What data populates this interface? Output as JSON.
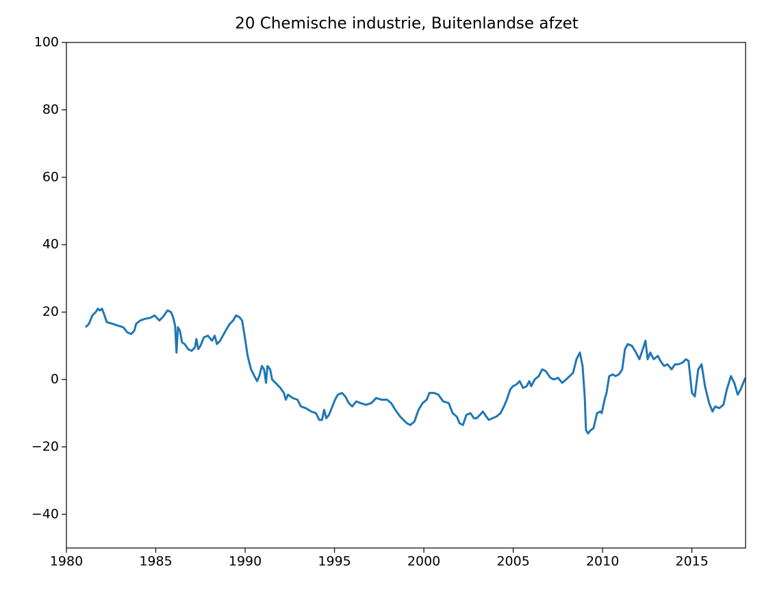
{
  "chart_data": {
    "type": "line",
    "title": "20 Chemische industrie, Buitenlandse afzet",
    "color": "#1f77b4",
    "x": [
      1981.07,
      1981.26,
      1981.45,
      1981.64,
      1981.76,
      1981.87,
      1981.99,
      1982.1,
      1982.26,
      1982.6,
      1982.87,
      1983.18,
      1983.4,
      1983.63,
      1983.8,
      1983.9,
      1984.13,
      1984.4,
      1984.7,
      1984.93,
      1985.2,
      1985.39,
      1985.66,
      1985.85,
      1985.97,
      1986.08,
      1986.16,
      1986.24,
      1986.35,
      1986.47,
      1986.62,
      1986.81,
      1987.0,
      1987.19,
      1987.27,
      1987.38,
      1987.5,
      1987.69,
      1987.92,
      1988.15,
      1988.3,
      1988.42,
      1988.6,
      1988.91,
      1989.14,
      1989.33,
      1989.49,
      1989.68,
      1989.83,
      1990.0,
      1990.14,
      1990.33,
      1990.52,
      1990.67,
      1990.79,
      1990.94,
      1991.06,
      1991.17,
      1991.25,
      1991.4,
      1991.51,
      1991.7,
      1991.97,
      1992.17,
      1992.28,
      1992.4,
      1992.66,
      1992.93,
      1993.12,
      1993.39,
      1993.7,
      1993.96,
      1994.15,
      1994.3,
      1994.42,
      1994.54,
      1994.69,
      1994.88,
      1995.03,
      1995.19,
      1995.42,
      1995.6,
      1995.8,
      1995.99,
      1996.22,
      1996.45,
      1996.76,
      1997.06,
      1997.33,
      1997.64,
      1997.94,
      1998.17,
      1998.4,
      1998.67,
      1998.86,
      1999.05,
      1999.24,
      1999.47,
      1999.7,
      1999.93,
      2000.16,
      2000.31,
      2000.58,
      2000.81,
      2001.08,
      2001.39,
      2001.61,
      2001.84,
      2002.0,
      2002.19,
      2002.38,
      2002.61,
      2002.8,
      2002.95,
      2003.14,
      2003.3,
      2003.49,
      2003.64,
      2003.83,
      2004.06,
      2004.29,
      2004.48,
      2004.64,
      2004.83,
      2004.98,
      2005.17,
      2005.36,
      2005.55,
      2005.75,
      2005.9,
      2006.01,
      2006.2,
      2006.43,
      2006.62,
      2006.82,
      2007.08,
      2007.28,
      2007.51,
      2007.74,
      2007.96,
      2008.16,
      2008.35,
      2008.54,
      2008.73,
      2008.88,
      2009.0,
      2009.07,
      2009.19,
      2009.34,
      2009.49,
      2009.69,
      2009.88,
      2009.95,
      2010.11,
      2010.22,
      2010.37,
      2010.57,
      2010.72,
      2010.91,
      2011.1,
      2011.25,
      2011.41,
      2011.64,
      2011.87,
      2012.06,
      2012.25,
      2012.4,
      2012.52,
      2012.67,
      2012.86,
      2013.09,
      2013.24,
      2013.44,
      2013.63,
      2013.86,
      2014.05,
      2014.24,
      2014.47,
      2014.66,
      2014.81,
      2015.0,
      2015.16,
      2015.35,
      2015.54,
      2015.73,
      2015.96,
      2016.15,
      2016.3,
      2016.53,
      2016.76,
      2016.95,
      2017.18,
      2017.37,
      2017.56,
      2017.72,
      2017.87,
      2017.99
    ],
    "values": [
      15.5,
      16.5,
      19,
      20,
      21,
      20.5,
      21,
      19.5,
      17,
      16.5,
      16,
      15.5,
      14,
      13.5,
      14.5,
      16.5,
      17.5,
      18,
      18.3,
      19,
      17.5,
      18.5,
      20.5,
      20,
      18.5,
      16,
      8,
      15.5,
      14.5,
      11,
      10.5,
      9,
      8.5,
      9.5,
      12,
      9,
      10,
      12.5,
      13,
      11.5,
      13,
      10.5,
      11.5,
      14.5,
      16.5,
      17.5,
      19,
      18.5,
      17.5,
      12,
      7,
      3,
      1,
      -0.5,
      1,
      4,
      3,
      -1,
      4,
      3,
      0,
      -1,
      -2.5,
      -4,
      -6,
      -4.5,
      -5.5,
      -6,
      -8,
      -8.5,
      -9.5,
      -10,
      -12,
      -12,
      -9,
      -11.5,
      -10.5,
      -8,
      -6,
      -4.5,
      -4,
      -5,
      -7,
      -8,
      -6.5,
      -7,
      -7.5,
      -7,
      -5.5,
      -6,
      -6,
      -7,
      -9,
      -11,
      -12,
      -13,
      -13.5,
      -12.5,
      -9,
      -7,
      -6,
      -4,
      -4,
      -4.5,
      -6.5,
      -7,
      -10,
      -11,
      -13,
      -13.5,
      -10.5,
      -10,
      -11.5,
      -11.5,
      -10.5,
      -9.5,
      -11,
      -12,
      -11.5,
      -11,
      -10,
      -8,
      -6,
      -3,
      -2,
      -1.5,
      -0.5,
      -2.5,
      -2,
      -0.5,
      -2,
      0,
      1,
      3,
      2.5,
      0.5,
      0,
      0.5,
      -1,
      0,
      1,
      2,
      6,
      8,
      4,
      -5,
      -15,
      -16,
      -15,
      -14.5,
      -10,
      -9.5,
      -10,
      -6,
      -4,
      1,
      1.5,
      1,
      1.5,
      3,
      9,
      10.5,
      10,
      8,
      6,
      9,
      11.5,
      6,
      8,
      6,
      7,
      5.5,
      4,
      4.5,
      3,
      4.5,
      4.5,
      5,
      6,
      5.5,
      -4,
      -5,
      3,
      4.5,
      -2,
      -7,
      -9.5,
      -8,
      -8.5,
      -7.5,
      -3,
      1,
      -1,
      -4.5,
      -3,
      -1,
      0.5
    ],
    "xlim": [
      1980,
      2018
    ],
    "ylim": [
      -50,
      100
    ],
    "xticks": [
      1980,
      1985,
      1990,
      1995,
      2000,
      2005,
      2010,
      2015
    ],
    "yticks": [
      {
        "value": -40,
        "label": "−40"
      },
      {
        "value": -20,
        "label": "−20"
      },
      0,
      20,
      40,
      60,
      80,
      100
    ]
  }
}
